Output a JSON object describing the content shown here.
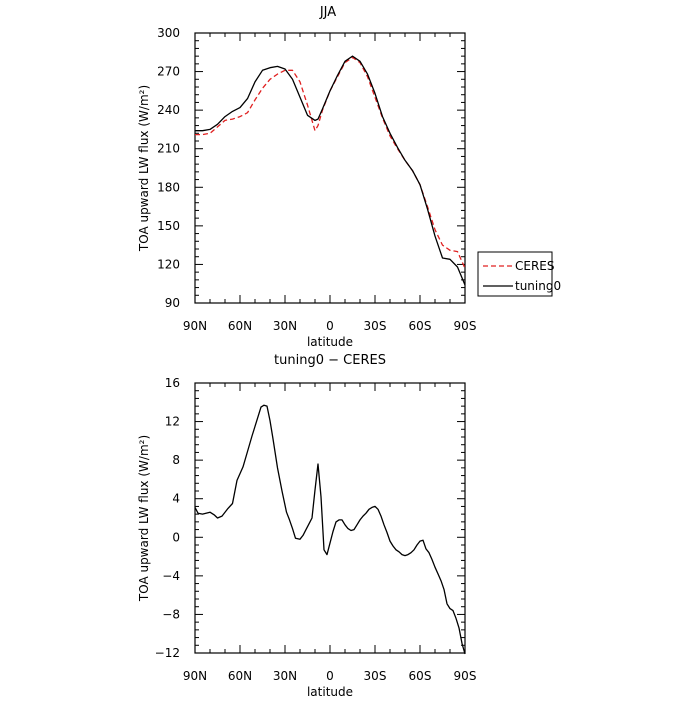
{
  "chart_data": [
    {
      "type": "line",
      "title": "JJA",
      "xlabel": "latitude",
      "ylabel": "TOA upward LW flux (W/m²)",
      "x_ticks": [
        -90,
        -60,
        -30,
        0,
        30,
        60,
        90
      ],
      "x_tick_labels": [
        "90N",
        "60N",
        "30N",
        "0",
        "30S",
        "60S",
        "90S"
      ],
      "y_ticks": [
        90,
        120,
        150,
        180,
        210,
        240,
        270,
        300
      ],
      "y_tick_labels": [
        "90",
        "120",
        "150",
        "180",
        "210",
        "240",
        "270",
        "300"
      ],
      "xlim": [
        -90,
        90
      ],
      "ylim": [
        90,
        300
      ],
      "legend_placement": "right",
      "series": [
        {
          "name": "CERES",
          "color": "#e02020",
          "dash": "dashed",
          "x": [
            -90,
            -85,
            -80,
            -75,
            -70,
            -65,
            -60,
            -55,
            -50,
            -45,
            -40,
            -35,
            -30,
            -25,
            -20,
            -15,
            -10,
            -8,
            -5,
            0,
            5,
            10,
            15,
            20,
            25,
            30,
            35,
            40,
            45,
            50,
            55,
            60,
            65,
            70,
            75,
            80,
            85,
            90
          ],
          "y": [
            221,
            221,
            222,
            227,
            232,
            233,
            235,
            238,
            248,
            257,
            264,
            268,
            271,
            271,
            262,
            244,
            224,
            228,
            240,
            255,
            266,
            277,
            281,
            277,
            266,
            250,
            234,
            220,
            210,
            201,
            193,
            182,
            165,
            147,
            135,
            131,
            130,
            117
          ]
        },
        {
          "name": "tuning0",
          "color": "#000000",
          "dash": "solid",
          "x": [
            -90,
            -85,
            -80,
            -75,
            -70,
            -65,
            -60,
            -55,
            -50,
            -45,
            -40,
            -35,
            -30,
            -25,
            -20,
            -15,
            -10,
            -8,
            -5,
            0,
            5,
            10,
            15,
            20,
            25,
            30,
            35,
            40,
            45,
            50,
            55,
            60,
            65,
            70,
            75,
            80,
            85,
            90
          ],
          "y": [
            224,
            224,
            225,
            229,
            235,
            239,
            242,
            249,
            262,
            271,
            273,
            274,
            272,
            264,
            250,
            236,
            232,
            233,
            241,
            255,
            267,
            278,
            282,
            278,
            268,
            253,
            235,
            222,
            211,
            201,
            193,
            182,
            163,
            142,
            125,
            124,
            118,
            104
          ]
        }
      ]
    },
    {
      "type": "line",
      "title": "tuning0 − CERES",
      "xlabel": "latitude",
      "ylabel": "TOA upward LW flux (W/m²)",
      "x_ticks": [
        -90,
        -60,
        -30,
        0,
        30,
        60,
        90
      ],
      "x_tick_labels": [
        "90N",
        "60N",
        "30N",
        "0",
        "30S",
        "60S",
        "90S"
      ],
      "y_ticks": [
        -12,
        -8,
        -4,
        0,
        4,
        8,
        12,
        16
      ],
      "y_tick_labels": [
        "−12",
        "−8",
        "−4",
        "0",
        "4",
        "8",
        "12",
        "16"
      ],
      "xlim": [
        -90,
        90
      ],
      "ylim": [
        -12,
        16
      ],
      "series": [
        {
          "color": "#000000",
          "dash": "solid",
          "x": [
            -90,
            -88,
            -85,
            -80,
            -77,
            -75,
            -72,
            -68,
            -65,
            -62,
            -58,
            -55,
            -52,
            -49,
            -46,
            -44,
            -42,
            -40,
            -38,
            -35,
            -32,
            -29,
            -27,
            -25,
            -23,
            -20,
            -18,
            -16,
            -14,
            -12,
            -10,
            -8,
            -6,
            -4,
            -2,
            0,
            2,
            4,
            6,
            8,
            10,
            12,
            14,
            16,
            18,
            20,
            22,
            24,
            26,
            28,
            30,
            32,
            34,
            36,
            38,
            40,
            42,
            44,
            46,
            48,
            50,
            52,
            54,
            56,
            58,
            60,
            62,
            64,
            66,
            68,
            70,
            72,
            74,
            76,
            78,
            80,
            82,
            84,
            86,
            88,
            90
          ],
          "y": [
            3.1,
            2.5,
            2.4,
            2.6,
            2.3,
            2.0,
            2.2,
            3.0,
            3.5,
            5.9,
            7.3,
            8.9,
            10.5,
            12.0,
            13.5,
            13.7,
            13.6,
            12.1,
            10.2,
            7.2,
            4.8,
            2.6,
            1.8,
            0.9,
            -0.1,
            -0.2,
            0.2,
            0.8,
            1.4,
            2.0,
            4.9,
            7.6,
            4.2,
            -1.3,
            -1.8,
            -0.6,
            0.6,
            1.6,
            1.8,
            1.8,
            1.3,
            0.9,
            0.7,
            0.8,
            1.3,
            1.8,
            2.2,
            2.5,
            2.9,
            3.1,
            3.2,
            2.9,
            2.2,
            1.3,
            0.5,
            -0.4,
            -0.9,
            -1.3,
            -1.5,
            -1.8,
            -1.9,
            -1.8,
            -1.6,
            -1.3,
            -0.8,
            -0.4,
            -0.3,
            -1.2,
            -1.6,
            -2.3,
            -3.1,
            -3.8,
            -4.5,
            -5.4,
            -6.9,
            -7.4,
            -7.6,
            -8.4,
            -9.4,
            -11.0,
            -12.1
          ]
        }
      ]
    }
  ]
}
